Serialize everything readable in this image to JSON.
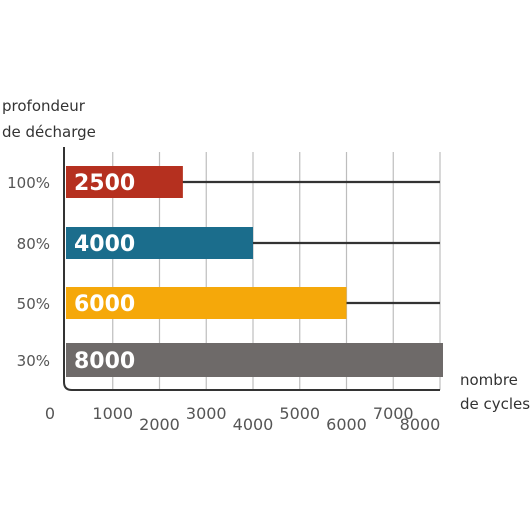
{
  "chart_data": {
    "type": "bar",
    "orientation": "horizontal",
    "ylabel_lines": [
      "profondeur",
      "de décharge"
    ],
    "xlabel_lines": [
      "nombre",
      "de cycles"
    ],
    "categories": [
      "100%",
      "80%",
      "50%",
      "30%"
    ],
    "values": [
      2500,
      4000,
      6000,
      8000
    ],
    "value_labels": [
      "2500",
      "4000",
      "6000",
      "8000"
    ],
    "colors": [
      "#b5301f",
      "#1b6d8c",
      "#f5a80a",
      "#6e6a69"
    ],
    "xlim": [
      0,
      8000
    ],
    "xticks": [
      "0",
      "1000",
      "2000",
      "3000",
      "4000",
      "5000",
      "6000",
      "7000",
      "8000"
    ],
    "grid": true,
    "legend": "none"
  }
}
